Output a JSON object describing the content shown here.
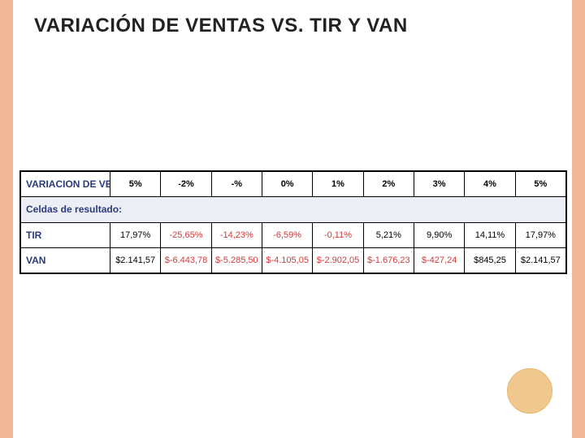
{
  "title": "VARIACIÓN DE VENTAS VS. TIR Y VAN",
  "title_fontsize": 24,
  "colors": {
    "frame_border": "#f2b89a",
    "header_text": "#2a3a7a",
    "negative": "#d23a3a",
    "positive": "#000000",
    "cell_border": "#000000",
    "circle_fill": "#f0c88e",
    "background": "#ffffff"
  },
  "table": {
    "type": "table",
    "header_label": "VARIACION DE VENTAS",
    "section_label": "Celdas de resultado:",
    "columns": [
      "5%",
      "-2%",
      "-%",
      "0%",
      "1%",
      "2%",
      "3%",
      "4%",
      "5%"
    ],
    "rows": [
      {
        "label": "TIR",
        "cells": [
          {
            "v": "17,97%",
            "neg": false
          },
          {
            "v": "-25,65%",
            "neg": true
          },
          {
            "v": "-14,23%",
            "neg": true
          },
          {
            "v": "-6,59%",
            "neg": true
          },
          {
            "v": "-0,11%",
            "neg": true
          },
          {
            "v": "5,21%",
            "neg": false
          },
          {
            "v": "9,90%",
            "neg": false
          },
          {
            "v": "14,11%",
            "neg": false
          },
          {
            "v": "17,97%",
            "neg": false
          }
        ]
      },
      {
        "label": "VAN",
        "cells": [
          {
            "v": "$2.141,57",
            "neg": false
          },
          {
            "v": "$-6.443,78",
            "neg": true
          },
          {
            "v": "$-5.285,50",
            "neg": true
          },
          {
            "v": "$-4.105,05",
            "neg": true
          },
          {
            "v": "$-2.902,05",
            "neg": true
          },
          {
            "v": "$-1.676,23",
            "neg": true
          },
          {
            "v": "$-427,24",
            "neg": true
          },
          {
            "v": "$845,25",
            "neg": false
          },
          {
            "v": "$2.141,57",
            "neg": false
          }
        ]
      }
    ],
    "cell_fontsize": 11,
    "label_fontsize": 12
  }
}
